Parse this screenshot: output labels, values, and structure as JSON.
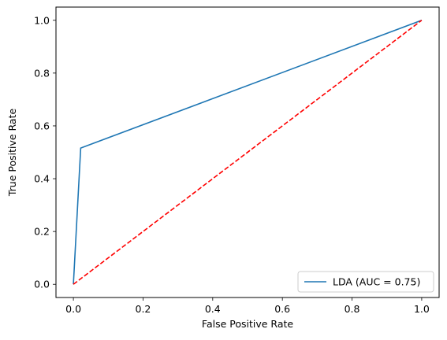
{
  "chart_data": {
    "type": "line",
    "title": "",
    "xlabel": "False Positive Rate",
    "ylabel": "True Positive Rate",
    "xlim": [
      -0.05,
      1.05
    ],
    "ylim": [
      -0.05,
      1.05
    ],
    "xticks": [
      0.0,
      0.2,
      0.4,
      0.6,
      0.8,
      1.0
    ],
    "yticks": [
      0.0,
      0.2,
      0.4,
      0.6,
      0.8,
      1.0
    ],
    "xtick_labels": [
      "0.0",
      "0.2",
      "0.4",
      "0.6",
      "0.8",
      "1.0"
    ],
    "ytick_labels": [
      "0.0",
      "0.2",
      "0.4",
      "0.6",
      "0.8",
      "1.0"
    ],
    "grid": false,
    "legend_position": "lower-right",
    "series": [
      {
        "name": "LDA (AUC = 0.75)",
        "color": "#1f77b4",
        "style": "solid",
        "x": [
          0.0,
          0.021,
          1.0
        ],
        "y": [
          0.0,
          0.516,
          1.0
        ]
      },
      {
        "color": "#ff0000",
        "style": "dashed",
        "x": [
          0.0,
          1.0
        ],
        "y": [
          0.0,
          1.0
        ]
      }
    ]
  }
}
